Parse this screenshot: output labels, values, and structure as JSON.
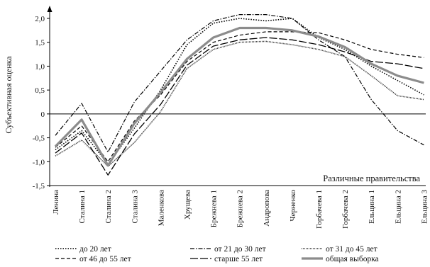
{
  "chart_data": {
    "type": "line",
    "title": "",
    "xlabel": "Различные правительства",
    "ylabel": "Субъективная оценка",
    "ylim": [
      -1.5,
      2.0
    ],
    "yticks": [
      "-1,5",
      "-1,0",
      "-0,5",
      "0",
      "0,5",
      "1,0",
      "1,5",
      "2,0"
    ],
    "ytick_values": [
      -1.5,
      -1.0,
      -0.5,
      0,
      0.5,
      1.0,
      1.5,
      2.0
    ],
    "categories": [
      "Ленина",
      "Сталина 1",
      "Сталина 2",
      "Сталина 3",
      "Маленкова",
      "Хрущева",
      "Брежнева 1",
      "Брежнева 2",
      "Андропова",
      "Черненко",
      "Горбачева 1",
      "Горбачева 2",
      "Ельцина 1",
      "Ельцина 2",
      "Ельцина 3"
    ],
    "grid": false,
    "legend_position": "bottom",
    "series": [
      {
        "name": "до 20 лет",
        "style": "dotted",
        "color": "#000000",
        "values": [
          -0.75,
          -0.35,
          -1.05,
          -0.3,
          0.5,
          1.45,
          1.9,
          2.0,
          1.95,
          2.0,
          1.6,
          1.35,
          1.0,
          0.7,
          0.4
        ]
      },
      {
        "name": "от 21 до 30 лет",
        "style": "dashdot",
        "color": "#000000",
        "values": [
          -0.45,
          0.22,
          -0.8,
          0.25,
          0.9,
          1.55,
          1.95,
          2.08,
          2.08,
          2.0,
          1.55,
          1.2,
          0.3,
          -0.35,
          -0.65
        ]
      },
      {
        "name": "от 31 до 45 лет",
        "style": "dense",
        "color": "#333333",
        "values": [
          -0.88,
          -0.55,
          -1.1,
          -0.6,
          0.05,
          0.95,
          1.35,
          1.5,
          1.52,
          1.45,
          1.35,
          1.2,
          0.8,
          0.38,
          0.3
        ]
      },
      {
        "name": "от 46 до 55 лет",
        "style": "dashed",
        "color": "#000000",
        "values": [
          -0.7,
          -0.25,
          -1.0,
          -0.15,
          0.4,
          1.1,
          1.5,
          1.65,
          1.72,
          1.72,
          1.7,
          1.55,
          1.35,
          1.25,
          1.18
        ]
      },
      {
        "name": "старше 55 лет",
        "style": "longdash",
        "color": "#000000",
        "values": [
          -0.82,
          -0.4,
          -1.28,
          -0.42,
          0.2,
          1.02,
          1.42,
          1.55,
          1.6,
          1.55,
          1.45,
          1.3,
          1.1,
          1.05,
          0.95
        ]
      },
      {
        "name": "общая выборка",
        "style": "thick",
        "color": "#8c8c8c",
        "values": [
          -0.68,
          -0.12,
          -1.08,
          -0.2,
          0.45,
          1.15,
          1.6,
          1.8,
          1.8,
          1.75,
          1.62,
          1.4,
          1.05,
          0.8,
          0.65
        ]
      }
    ]
  }
}
